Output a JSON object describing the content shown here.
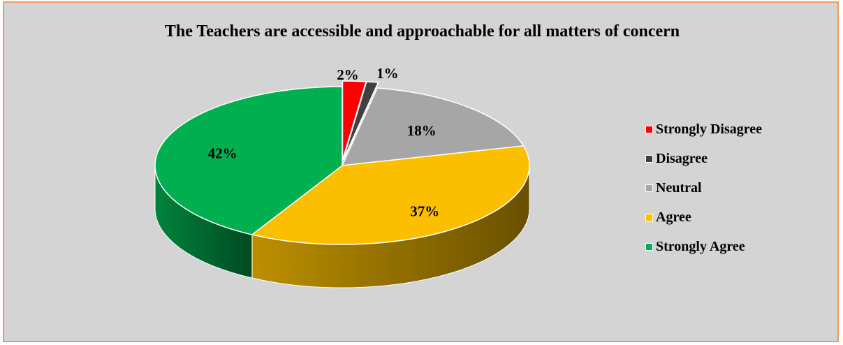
{
  "chart_data": {
    "type": "pie",
    "title": "The Teachers are accessible and approachable for all matters of concern",
    "categories": [
      "Strongly Disagree",
      "Disagree",
      "Neutral",
      "Agree",
      "Strongly Agree"
    ],
    "values": [
      2,
      1,
      18,
      37,
      42
    ],
    "value_labels": [
      "2%",
      "1%",
      "18%",
      "37%",
      "42%"
    ],
    "colors": [
      "#ff0000",
      "#404040",
      "#a6a6a6",
      "#fbbf00",
      "#00b050"
    ],
    "style": "3d-exploded-slices",
    "legend_position": "right"
  }
}
